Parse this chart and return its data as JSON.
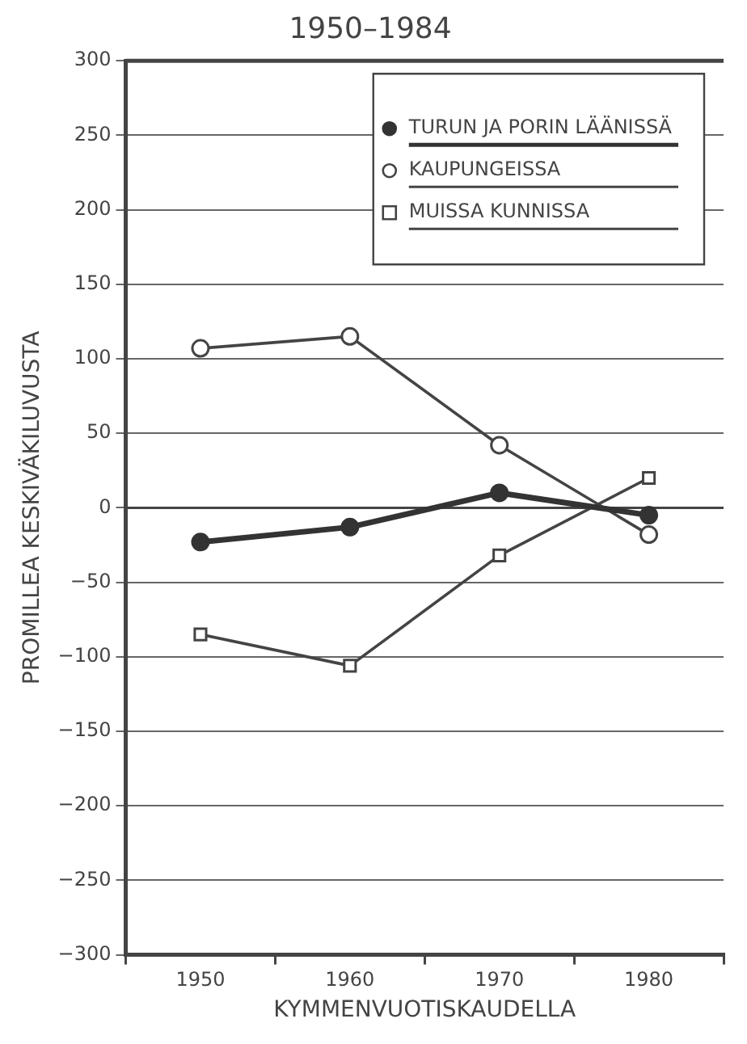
{
  "chart_data": {
    "type": "line",
    "title": "1950–1984",
    "xlabel": "KYMMENVUOTISKAUDELLA",
    "ylabel": "PROMILLEA KESKIVÄKILUVUSTA",
    "categories": [
      "1950",
      "1960",
      "1970",
      "1980"
    ],
    "series": [
      {
        "name": "TURUN JA PORIN LÄÄNISSÄ",
        "color": "#333333",
        "marker": "circle",
        "values": [
          -23,
          -13,
          10,
          -5
        ]
      },
      {
        "name": "KAUPUNGEISSA",
        "color": "#444444",
        "marker": "circle-open",
        "values": [
          107,
          115,
          42,
          -18
        ]
      },
      {
        "name": "MUISSA KUNNISSA",
        "color": "#444444",
        "marker": "square-open",
        "values": [
          -85,
          -106,
          -32,
          20
        ]
      }
    ],
    "ylim": [
      -300,
      300
    ],
    "yticks": [
      -300,
      -250,
      -200,
      -150,
      -100,
      -50,
      0,
      50,
      100,
      150,
      200,
      250,
      300
    ],
    "ref_lines": [
      {
        "axis": "y",
        "value": 0
      }
    ],
    "grid": "y",
    "legend": "top right",
    "line_style": "solid"
  }
}
